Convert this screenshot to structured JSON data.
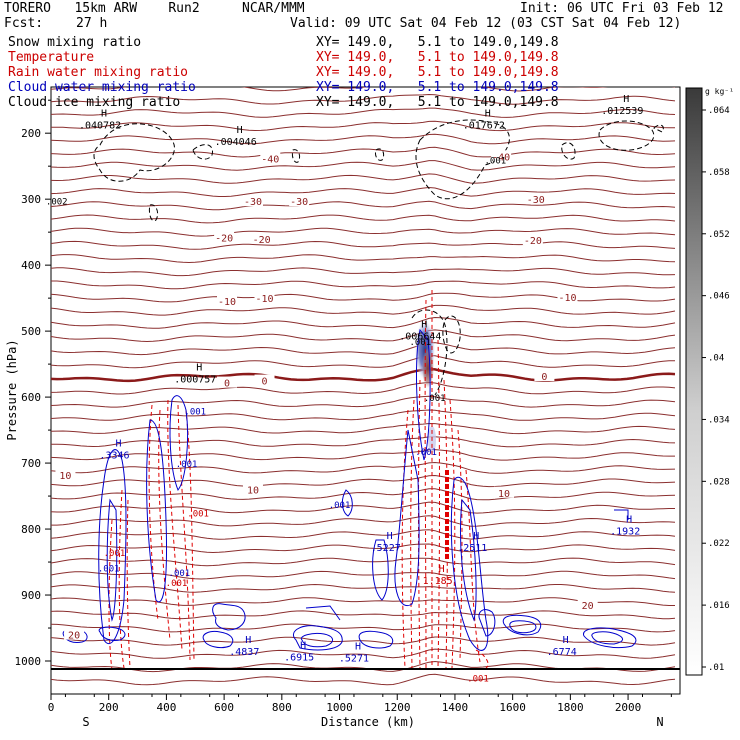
{
  "header": {
    "model": "TORERO   15km ARW    Run2",
    "org": "NCAR/MMM",
    "init": "Init: 06 UTC Fri 03 Feb 12",
    "fcst_label": "Fcst:",
    "fcst_value": "27 h",
    "valid": "Valid: 09 UTC Sat 04 Feb 12 (03 CST Sat 04 Feb 12)"
  },
  "fields": [
    {
      "name": "Snow mixing ratio",
      "xy": "XY= 149.0,   5.1 to 149.0,149.8",
      "color": "#000000"
    },
    {
      "name": "Temperature",
      "xy": "XY= 149.0,   5.1 to 149.0,149.8",
      "color": "#cc0000"
    },
    {
      "name": "Rain water mixing ratio",
      "xy": "XY= 149.0,   5.1 to 149.0,149.8",
      "color": "#cc0000"
    },
    {
      "name": "Cloud water mixing ratio",
      "xy": "XY= 149.0,   5.1 to 149.0,149.8",
      "color": "#0000bb"
    },
    {
      "name": "Cloud ice mixing ratio",
      "xy": "XY= 149.0,   5.1 to 149.0,149.8",
      "color": "#000000"
    }
  ],
  "chart_data": {
    "type": "contour",
    "xlabel": "Distance (km)",
    "ylabel": "Pressure (hPa)",
    "xlim": [
      0,
      2180
    ],
    "ylim": [
      1050,
      130
    ],
    "x_ticks": [
      0,
      200,
      400,
      600,
      800,
      1000,
      1200,
      1400,
      1600,
      1800,
      2000
    ],
    "y_ticks": [
      200,
      300,
      400,
      500,
      600,
      700,
      800,
      900,
      1000
    ],
    "end_labels": {
      "left": "S",
      "right": "N"
    },
    "colorbar": {
      "unit": "g kg⁻¹",
      "ticks": [
        ".01",
        ".016",
        ".022",
        ".028",
        ".034",
        ".04",
        ".046",
        ".052",
        ".058",
        ".064"
      ]
    },
    "temperature_labels": [
      {
        "text": "-40",
        "x": 760,
        "p": 238
      },
      {
        "text": "-40",
        "x": 1560,
        "p": 235
      },
      {
        "text": "-30",
        "x": 700,
        "p": 303
      },
      {
        "text": "-30",
        "x": 860,
        "p": 303
      },
      {
        "text": "-30",
        "x": 1680,
        "p": 300
      },
      {
        "text": "-20",
        "x": 600,
        "p": 358
      },
      {
        "text": "-20",
        "x": 730,
        "p": 360
      },
      {
        "text": "-20",
        "x": 1670,
        "p": 362
      },
      {
        "text": "-10",
        "x": 610,
        "p": 454
      },
      {
        "text": "-10",
        "x": 740,
        "p": 450
      },
      {
        "text": "-10",
        "x": 1790,
        "p": 448
      },
      {
        "text": "0",
        "x": 610,
        "p": 578
      },
      {
        "text": "0",
        "x": 740,
        "p": 575
      },
      {
        "text": "0",
        "x": 1710,
        "p": 568
      },
      {
        "text": "10",
        "x": 50,
        "p": 718
      },
      {
        "text": "10",
        "x": 700,
        "p": 740
      },
      {
        "text": "10",
        "x": 1570,
        "p": 745
      },
      {
        "text": "20",
        "x": 80,
        "p": 960
      },
      {
        "text": "20",
        "x": 1860,
        "p": 915
      }
    ],
    "maxima_labels": [
      {
        "text": ".040782",
        "x": 170,
        "p": 190,
        "color": "#000000"
      },
      {
        "text": ".004046",
        "x": 640,
        "p": 215,
        "color": "#000000"
      },
      {
        "text": ".017672",
        "x": 1500,
        "p": 190,
        "color": "#000000"
      },
      {
        "text": ".012539",
        "x": 1980,
        "p": 168,
        "color": "#000000"
      },
      {
        "text": ".000757",
        "x": 500,
        "p": 575,
        "color": "#000000"
      },
      {
        "text": ".006644",
        "x": 1280,
        "p": 510,
        "color": "#000000"
      },
      {
        "text": ".3346",
        "x": 220,
        "p": 690,
        "color": "#0000bb"
      },
      {
        "text": ".5227",
        "x": 1160,
        "p": 830,
        "color": "#0000bb"
      },
      {
        "text": ".2511",
        "x": 1460,
        "p": 830,
        "color": "#0000bb"
      },
      {
        "text": ".1932",
        "x": 1990,
        "p": 805,
        "color": "#0000bb"
      },
      {
        "text": "1.185",
        "x": 1340,
        "p": 880,
        "color": "#cc0000"
      },
      {
        "text": ".4837",
        "x": 670,
        "p": 988,
        "color": "#0000bb"
      },
      {
        "text": ".6915",
        "x": 860,
        "p": 996,
        "color": "#0000bb"
      },
      {
        "text": ".5271",
        "x": 1050,
        "p": 998,
        "color": "#0000bb"
      },
      {
        "text": ".6774",
        "x": 1770,
        "p": 988,
        "color": "#0000bb"
      }
    ],
    "contour_value_labels": [
      {
        "text": ".002",
        "x": 20,
        "p": 302,
        "color": "#000000"
      },
      {
        "text": ".001",
        "x": 1540,
        "p": 240,
        "color": "#000000"
      },
      {
        "text": ".001",
        "x": 500,
        "p": 620,
        "color": "#0000bb"
      },
      {
        "text": ".001",
        "x": 470,
        "p": 700,
        "color": "#0000bb"
      },
      {
        "text": ".001",
        "x": 1000,
        "p": 762,
        "color": "#0000bb"
      },
      {
        "text": ".001",
        "x": 510,
        "p": 775,
        "color": "#cc0000"
      },
      {
        "text": ".001",
        "x": 220,
        "p": 835,
        "color": "#cc0000"
      },
      {
        "text": ".001",
        "x": 200,
        "p": 858,
        "color": "#0000bb"
      },
      {
        "text": ".001",
        "x": 445,
        "p": 865,
        "color": "#0000bb"
      },
      {
        "text": ".001",
        "x": 435,
        "p": 880,
        "color": "#cc0000"
      },
      {
        "text": ".001",
        "x": 1280,
        "p": 515,
        "color": "#000000"
      },
      {
        "text": ".001",
        "x": 1330,
        "p": 600,
        "color": "#000000"
      },
      {
        "text": ".001",
        "x": 1300,
        "p": 682,
        "color": "#0000bb"
      },
      {
        "text": ".001",
        "x": 1480,
        "p": 1025,
        "color": "#cc0000"
      }
    ]
  }
}
